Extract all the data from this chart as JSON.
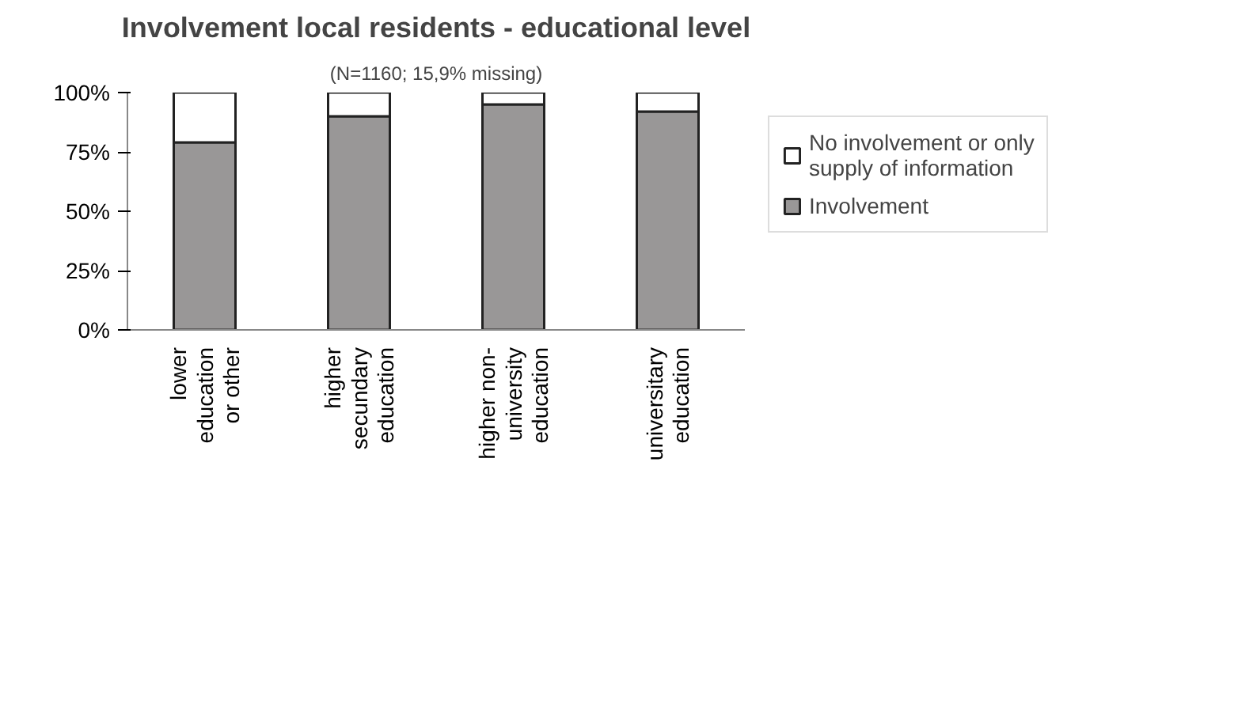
{
  "chart_data": {
    "type": "bar",
    "title": "Involvement local residents - educational level",
    "subtitle": "(N=1160; 15,9% missing)",
    "categories": [
      "lower education or other",
      "higher secundary education",
      "higher non-university education",
      "universitary education"
    ],
    "stacked": true,
    "series": [
      {
        "name": "Involvement",
        "color": "#999797",
        "values": [
          79,
          90,
          95,
          92
        ]
      },
      {
        "name": "No involvement or only supply of information",
        "color": "#ffffff",
        "values": [
          21,
          10,
          5,
          8
        ]
      }
    ],
    "ylim": [
      0,
      100
    ],
    "yticks": [
      {
        "value": 0,
        "label": "0%"
      },
      {
        "value": 25,
        "label": "25%"
      },
      {
        "value": 50,
        "label": "50%"
      },
      {
        "value": 75,
        "label": "75%"
      },
      {
        "value": 100,
        "label": "100%"
      }
    ],
    "grid": false,
    "legend": "right"
  }
}
